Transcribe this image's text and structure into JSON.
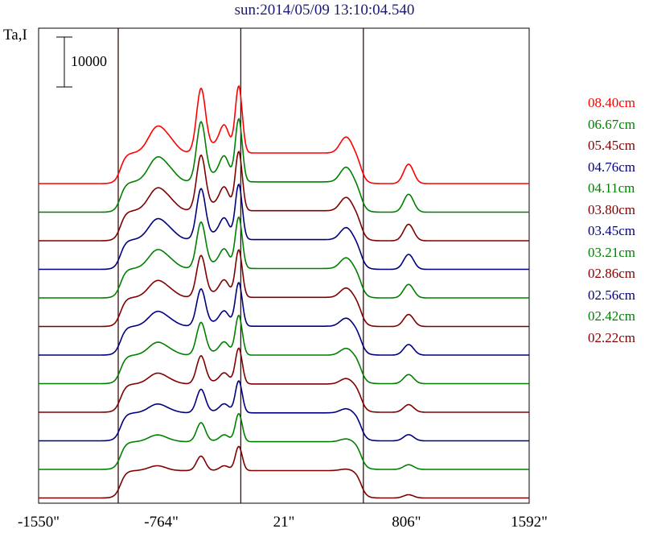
{
  "chart_data": {
    "type": "line",
    "title": "sun:2014/05/09 13:10:04.540",
    "ylabel": "Ta,I",
    "scale_bar_label": "10000",
    "xtick_labels": [
      "-1550\"",
      "-764\"",
      "21\"",
      "806\"",
      "1592\""
    ],
    "xticks": [
      -1550,
      -764,
      21,
      806,
      1592
    ],
    "xlim": [
      -1550,
      1592
    ],
    "vertical_lines_x": [
      -1040,
      -255,
      530
    ],
    "series": [
      {
        "name": "08.40cm",
        "color": "#ff0000"
      },
      {
        "name": "06.67cm",
        "color": "#008000"
      },
      {
        "name": "05.45cm",
        "color": "#800000"
      },
      {
        "name": "04.76cm",
        "color": "#000080"
      },
      {
        "name": "04.11cm",
        "color": "#008000"
      },
      {
        "name": "03.80cm",
        "color": "#800000"
      },
      {
        "name": "03.45cm",
        "color": "#000080"
      },
      {
        "name": "03.21cm",
        "color": "#008000"
      },
      {
        "name": "02.86cm",
        "color": "#800000"
      },
      {
        "name": "02.56cm",
        "color": "#000080"
      },
      {
        "name": "02.42cm",
        "color": "#008000"
      },
      {
        "name": "02.22cm",
        "color": "#800000"
      }
    ]
  }
}
